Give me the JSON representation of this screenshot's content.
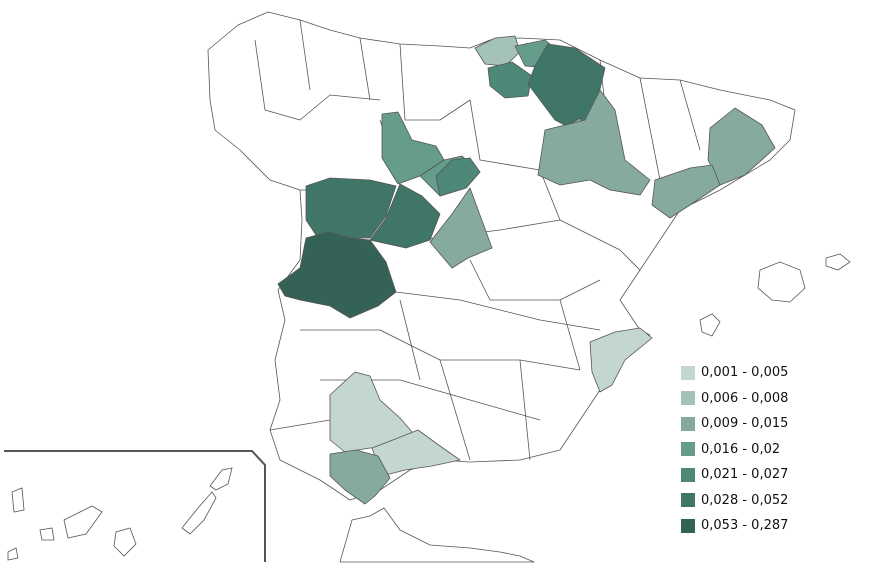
{
  "legend": {
    "classes": [
      {
        "label": "0,001 - 0,005",
        "color": "#c3d6cf"
      },
      {
        "label": "0,006 - 0,008",
        "color": "#a5c2b8"
      },
      {
        "label": "0,009 - 0,015",
        "color": "#87aa9f"
      },
      {
        "label": "0,016 - 0,02",
        "color": "#659c8c"
      },
      {
        "label": "0,021 - 0,027",
        "color": "#4e8878"
      },
      {
        "label": "0,028 - 0,052",
        "color": "#3f7667"
      },
      {
        "label": "0,053 - 0,287",
        "color": "#356257"
      }
    ]
  },
  "regions": [
    {
      "id": "vizcaya",
      "class_index": 1
    },
    {
      "id": "guipuzcoa",
      "class_index": 3
    },
    {
      "id": "alava",
      "class_index": 4
    },
    {
      "id": "navarra",
      "class_index": 5
    },
    {
      "id": "la-rioja",
      "class_index": 2
    },
    {
      "id": "zaragoza",
      "class_index": 2
    },
    {
      "id": "barcelona-girona",
      "class_index": 2
    },
    {
      "id": "tarragona",
      "class_index": 2
    },
    {
      "id": "palencia-burgos",
      "class_index": 3
    },
    {
      "id": "valladolid",
      "class_index": 3
    },
    {
      "id": "segovia",
      "class_index": 4
    },
    {
      "id": "madrid",
      "class_index": 2
    },
    {
      "id": "avila",
      "class_index": 5
    },
    {
      "id": "salamanca",
      "class_index": 5
    },
    {
      "id": "caceres",
      "class_index": 6
    },
    {
      "id": "alicante",
      "class_index": 0
    },
    {
      "id": "sevilla",
      "class_index": 0
    },
    {
      "id": "malaga",
      "class_index": 0
    },
    {
      "id": "cadiz",
      "class_index": 2
    }
  ]
}
